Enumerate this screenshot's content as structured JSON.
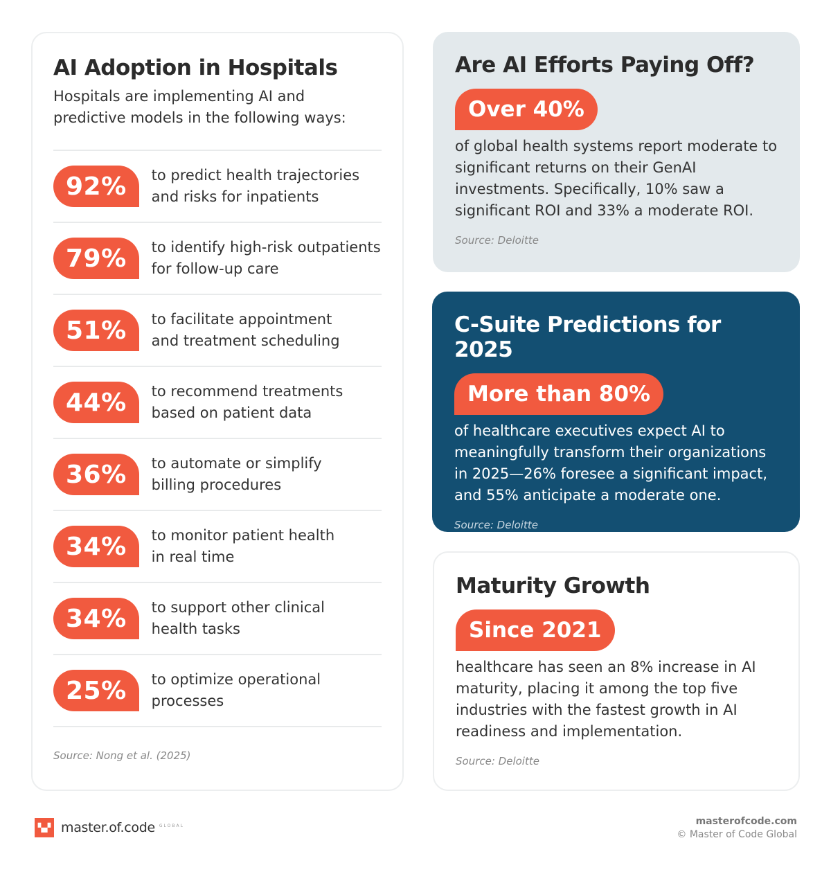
{
  "left": {
    "title": "AI Adoption in Hospitals",
    "subtitle": "Hospitals are implementing AI and predictive models in the following ways:",
    "items": [
      {
        "pct": "92%",
        "text": "to predict health trajectories and risks for inpatients"
      },
      {
        "pct": "79%",
        "text": "to identify high-risk outpatients for follow-up care"
      },
      {
        "pct": "51%",
        "text": "to facilitate appointment and treatment scheduling"
      },
      {
        "pct": "44%",
        "text": "to recommend treatments based on patient data"
      },
      {
        "pct": "36%",
        "text": "to automate or simplify billing procedures"
      },
      {
        "pct": "34%",
        "text": "to monitor patient health in real time"
      },
      {
        "pct": "34%",
        "text": "to support other clinical health tasks"
      },
      {
        "pct": "25%",
        "text": "to optimize operational processes"
      }
    ],
    "source": "Source: Nong et al. (2025)"
  },
  "cards": [
    {
      "title": "Are AI Efforts Paying Off?",
      "highlight": "Over 40%",
      "text": "of global health systems report moderate to significant returns on their GenAI investments. Specifically, 10% saw a significant ROI and 33% a moderate ROI.",
      "source": "Source: Deloitte"
    },
    {
      "title": "C-Suite Predictions for 2025",
      "highlight": "More than 80%",
      "text": "of healthcare executives expect AI to meaningfully transform their organizations in 2025—26% foresee a significant impact, and 55% anticipate a moderate one.",
      "source": "Source: Deloitte"
    },
    {
      "title": "Maturity Growth",
      "highlight": "Since 2021",
      "text": "healthcare has seen an 8% increase in AI maturity, placing it among the top five industries with the fastest growth in AI readiness and implementation.",
      "source": "Source: Deloitte"
    }
  ],
  "footer": {
    "logo": "master.of.code",
    "logo_sub": "GLOBAL",
    "site": "masterofcode.com",
    "copyright": "© Master of Code Global"
  },
  "colors": {
    "accent": "#f15a3f",
    "navy": "#134f72",
    "gray_card": "#e3e9ec"
  }
}
